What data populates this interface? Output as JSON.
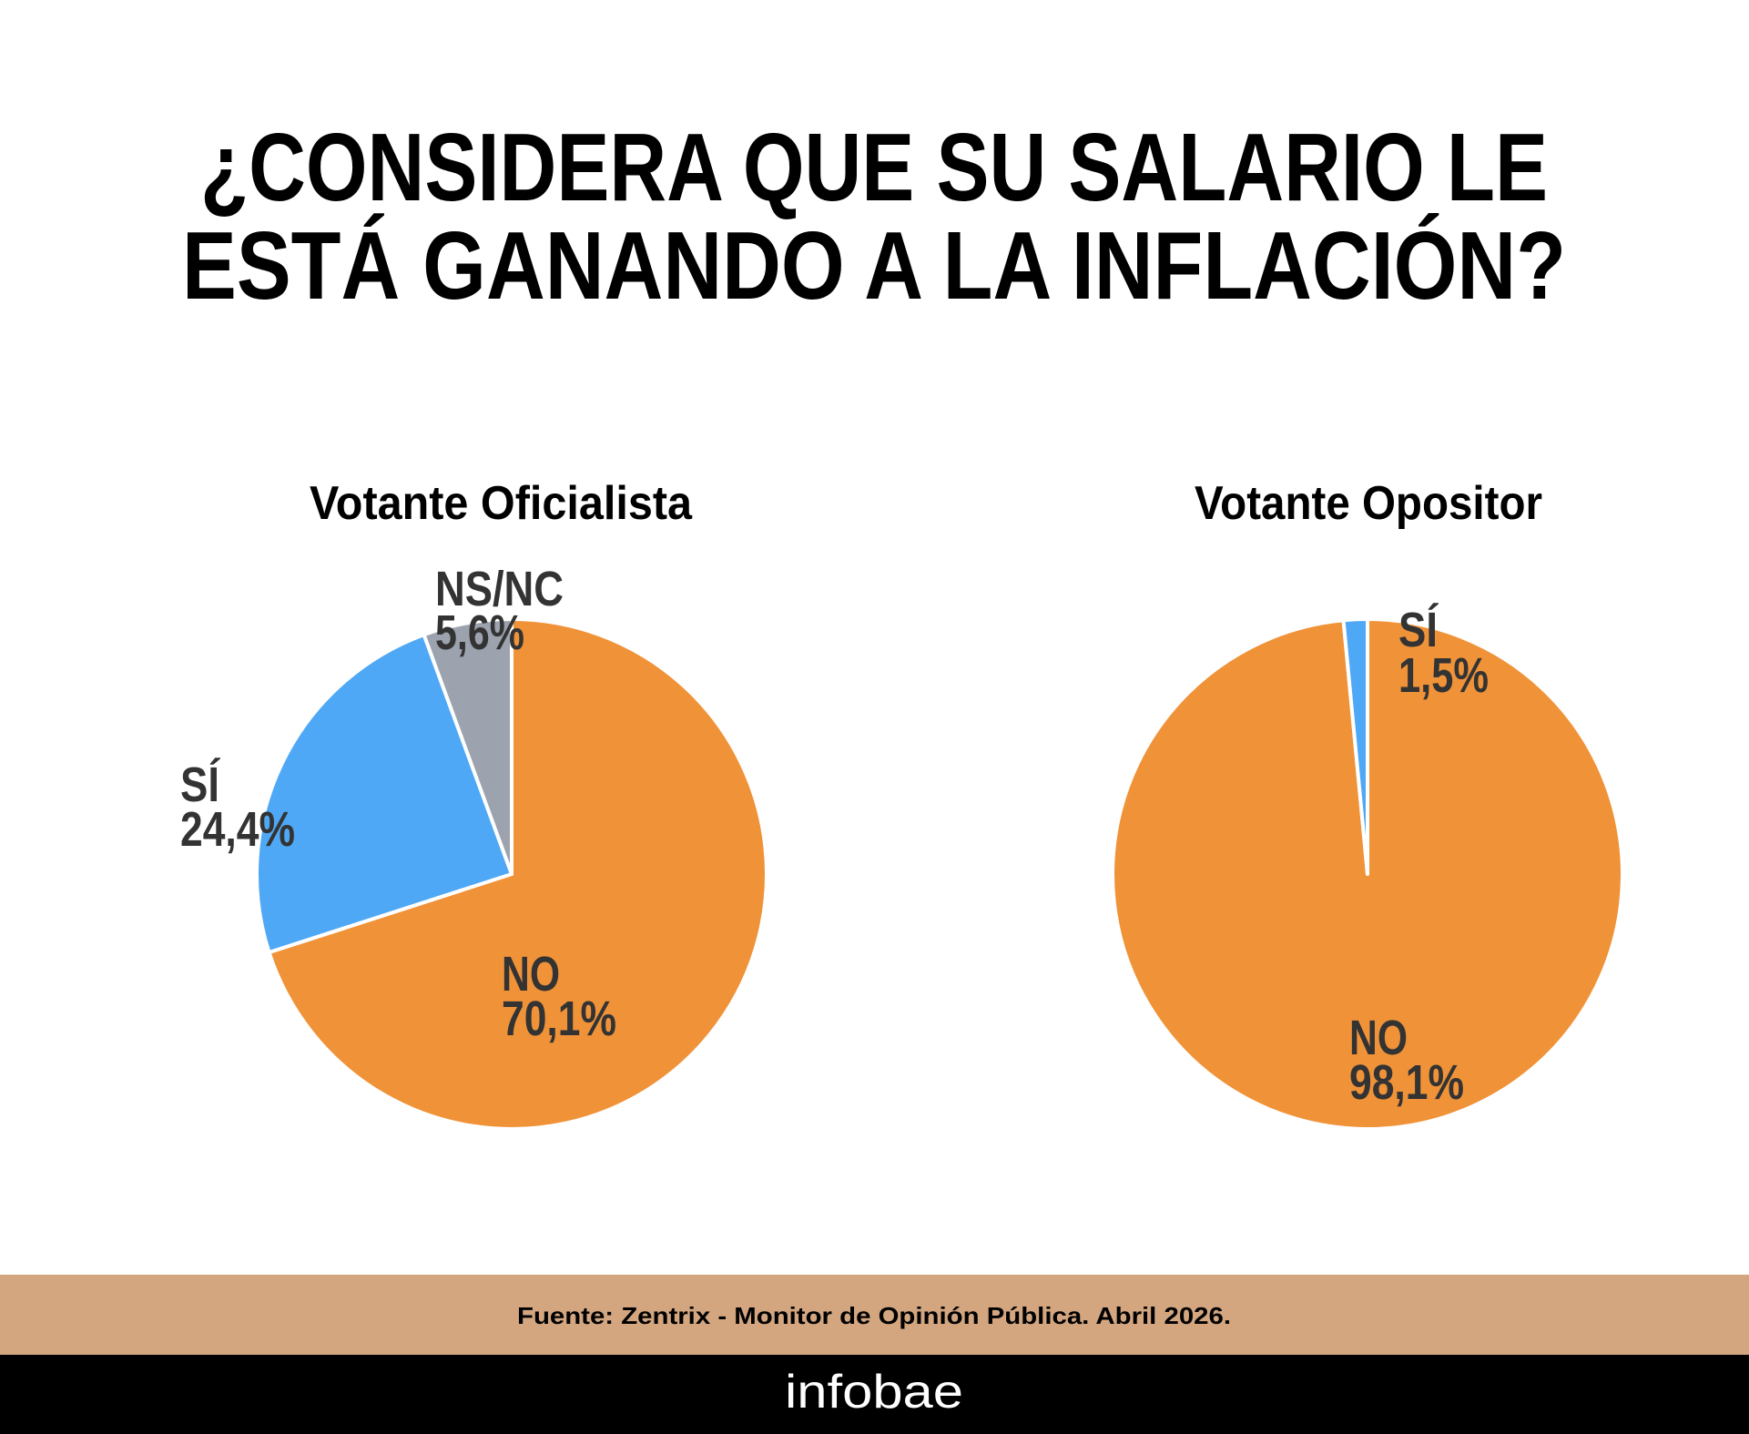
{
  "chart_data": [
    {
      "type": "pie",
      "title": "Votante Oficialista",
      "slices": [
        {
          "label": "NO",
          "value": 70.1,
          "display": "70,1%",
          "color": "#F09238"
        },
        {
          "label": "SÍ",
          "value": 24.4,
          "display": "24,4%",
          "color": "#4FA8F5"
        },
        {
          "label": "NS/NC",
          "value": 5.6,
          "display": "5,6%",
          "color": "#9CA3AE"
        }
      ]
    },
    {
      "type": "pie",
      "title": "Votante Opositor",
      "slices": [
        {
          "label": "NO",
          "value": 98.1,
          "display": "98,1%",
          "color": "#F09238"
        },
        {
          "label": "SÍ",
          "value": 1.5,
          "display": "1,5%",
          "color": "#4FA8F5"
        }
      ]
    }
  ],
  "header": {
    "title_line1": "¿CONSIDERA QUE SU SALARIO LE",
    "title_line2": "ESTÁ GANANDO A LA INFLACIÓN?"
  },
  "footer": {
    "source": "Fuente: Zentrix - Monitor de Opinión Pública. Abril 2026.",
    "logo": "infobae",
    "band_color": "#D3A680"
  }
}
